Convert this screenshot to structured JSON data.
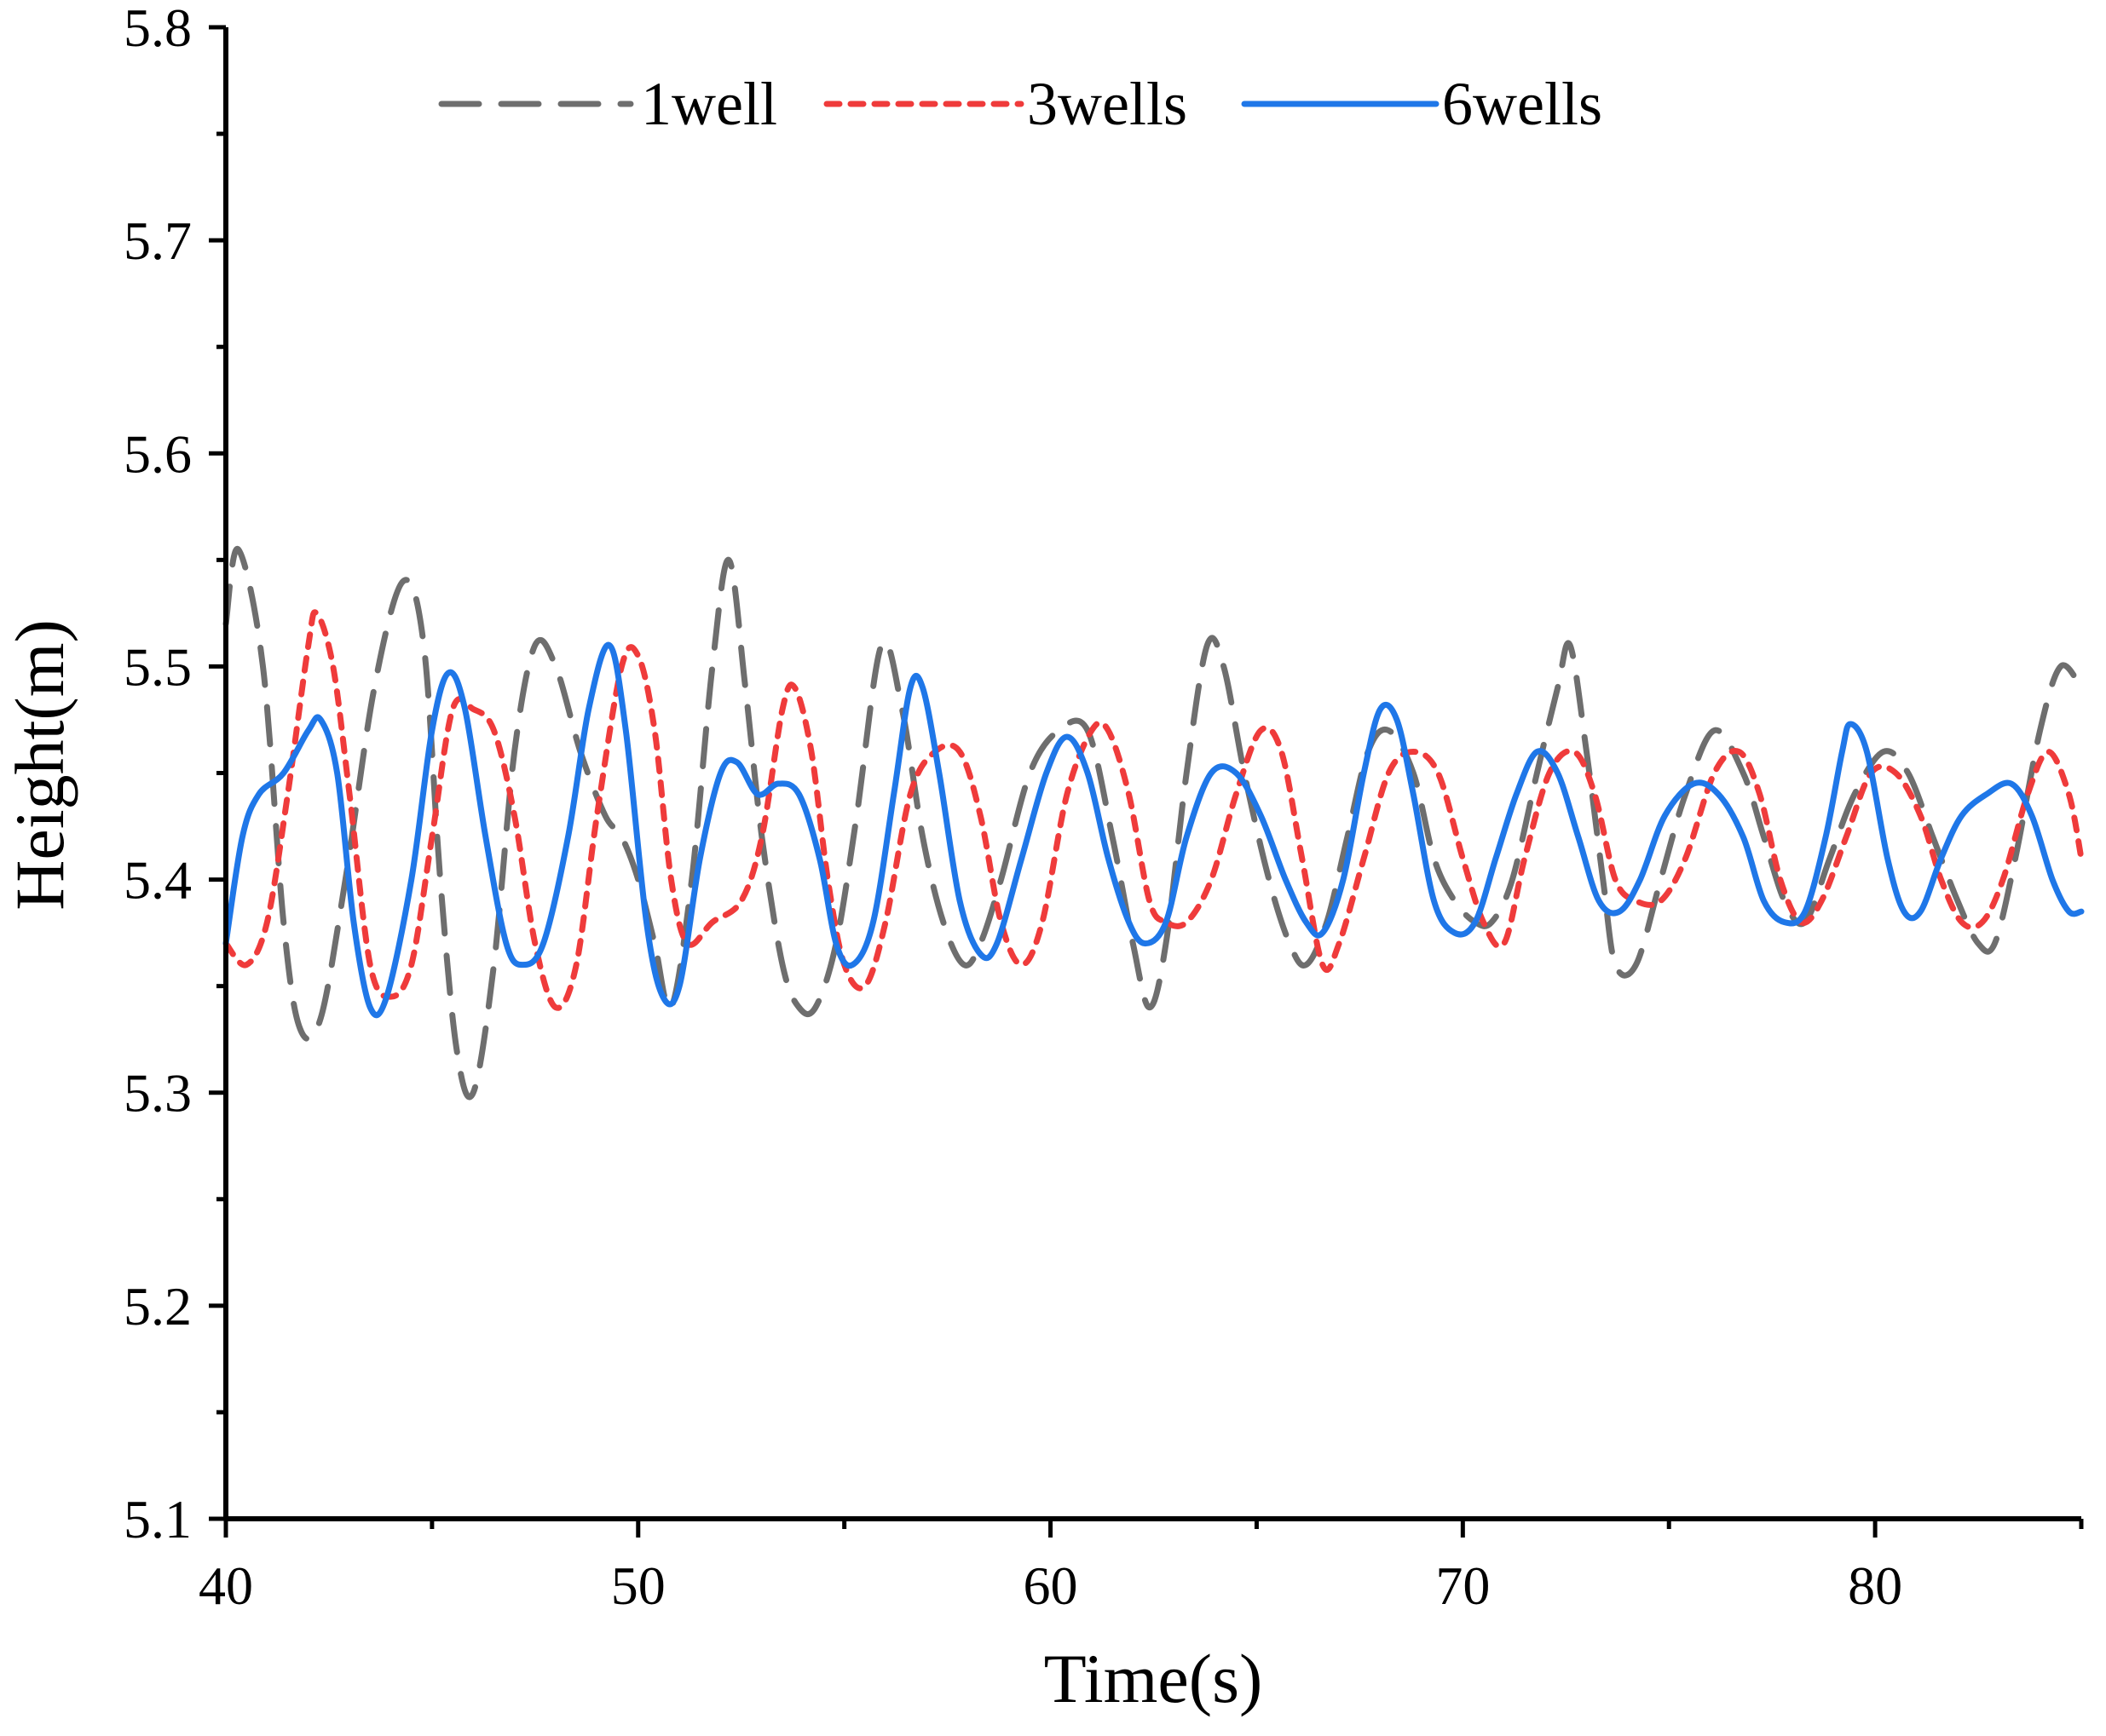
{
  "chart_data": {
    "type": "line",
    "title": "",
    "xlabel": "Time(s)",
    "ylabel": "Height(m)",
    "xlim": [
      40,
      85
    ],
    "ylim": [
      5.1,
      5.8
    ],
    "xticks": [
      40,
      50,
      60,
      70,
      80
    ],
    "xtick_labels": [
      "40",
      "50",
      "60",
      "70",
      "80"
    ],
    "yticks": [
      5.1,
      5.2,
      5.3,
      5.4,
      5.5,
      5.6,
      5.7,
      5.8
    ],
    "ytick_labels": [
      "5.1",
      "5.2",
      "5.3",
      "5.4",
      "5.5",
      "5.6",
      "5.7",
      "5.8"
    ],
    "grid": false,
    "legend_position": "top",
    "series": [
      {
        "name": "1well",
        "color": "#6e6e6e",
        "style": "dashed",
        "points": [
          [
            40.0,
            5.52
          ],
          [
            40.3,
            5.555
          ],
          [
            40.9,
            5.5
          ],
          [
            41.4,
            5.38
          ],
          [
            41.8,
            5.33
          ],
          [
            42.3,
            5.335
          ],
          [
            42.9,
            5.4
          ],
          [
            43.6,
            5.49
          ],
          [
            44.3,
            5.54
          ],
          [
            44.8,
            5.51
          ],
          [
            45.2,
            5.4
          ],
          [
            45.6,
            5.32
          ],
          [
            46.0,
            5.3
          ],
          [
            46.5,
            5.36
          ],
          [
            47.0,
            5.46
          ],
          [
            47.5,
            5.51
          ],
          [
            48.0,
            5.5
          ],
          [
            48.6,
            5.46
          ],
          [
            49.2,
            5.43
          ],
          [
            49.6,
            5.42
          ],
          [
            50.0,
            5.4
          ],
          [
            50.4,
            5.37
          ],
          [
            50.8,
            5.34
          ],
          [
            51.3,
            5.4
          ],
          [
            51.8,
            5.5
          ],
          [
            52.2,
            5.55
          ],
          [
            52.6,
            5.49
          ],
          [
            53.0,
            5.42
          ],
          [
            53.5,
            5.36
          ],
          [
            53.9,
            5.34
          ],
          [
            54.3,
            5.34
          ],
          [
            54.8,
            5.37
          ],
          [
            55.3,
            5.43
          ],
          [
            55.9,
            5.51
          ],
          [
            56.4,
            5.48
          ],
          [
            56.9,
            5.42
          ],
          [
            57.4,
            5.38
          ],
          [
            57.9,
            5.36
          ],
          [
            58.3,
            5.37
          ],
          [
            58.8,
            5.4
          ],
          [
            59.5,
            5.45
          ],
          [
            60.2,
            5.47
          ],
          [
            60.9,
            5.47
          ],
          [
            61.5,
            5.42
          ],
          [
            62.0,
            5.37
          ],
          [
            62.4,
            5.34
          ],
          [
            62.8,
            5.37
          ],
          [
            63.3,
            5.45
          ],
          [
            63.8,
            5.51
          ],
          [
            64.2,
            5.5
          ],
          [
            64.7,
            5.45
          ],
          [
            65.3,
            5.4
          ],
          [
            65.8,
            5.37
          ],
          [
            66.2,
            5.36
          ],
          [
            66.7,
            5.38
          ],
          [
            67.2,
            5.42
          ],
          [
            67.7,
            5.46
          ],
          [
            68.2,
            5.47
          ],
          [
            68.8,
            5.45
          ],
          [
            69.3,
            5.41
          ],
          [
            69.8,
            5.39
          ],
          [
            70.3,
            5.38
          ],
          [
            70.7,
            5.38
          ],
          [
            71.2,
            5.4
          ],
          [
            71.8,
            5.45
          ],
          [
            72.3,
            5.49
          ],
          [
            72.6,
            5.51
          ],
          [
            73.0,
            5.46
          ],
          [
            73.4,
            5.4
          ],
          [
            73.7,
            5.36
          ],
          [
            74.2,
            5.36
          ],
          [
            74.8,
            5.4
          ],
          [
            75.4,
            5.44
          ],
          [
            76.1,
            5.47
          ],
          [
            76.8,
            5.45
          ],
          [
            77.3,
            5.42
          ],
          [
            77.8,
            5.39
          ],
          [
            78.3,
            5.38
          ],
          [
            78.9,
            5.41
          ],
          [
            79.5,
            5.44
          ],
          [
            80.2,
            5.46
          ],
          [
            80.8,
            5.45
          ],
          [
            81.4,
            5.42
          ],
          [
            82.0,
            5.39
          ],
          [
            82.5,
            5.37
          ],
          [
            82.9,
            5.37
          ],
          [
            83.4,
            5.41
          ],
          [
            84.0,
            5.47
          ],
          [
            84.5,
            5.5
          ],
          [
            85.0,
            5.49
          ]
        ]
      },
      {
        "name": "3wells",
        "color": "#ef3b3b",
        "style": "dotted",
        "points": [
          [
            40.0,
            5.37
          ],
          [
            40.5,
            5.36
          ],
          [
            41.0,
            5.38
          ],
          [
            41.5,
            5.44
          ],
          [
            42.0,
            5.51
          ],
          [
            42.2,
            5.525
          ],
          [
            42.6,
            5.5
          ],
          [
            43.0,
            5.44
          ],
          [
            43.5,
            5.36
          ],
          [
            44.0,
            5.345
          ],
          [
            44.5,
            5.36
          ],
          [
            45.0,
            5.42
          ],
          [
            45.5,
            5.48
          ],
          [
            46.0,
            5.48
          ],
          [
            46.5,
            5.47
          ],
          [
            47.0,
            5.43
          ],
          [
            47.5,
            5.37
          ],
          [
            48.0,
            5.34
          ],
          [
            48.5,
            5.36
          ],
          [
            49.0,
            5.43
          ],
          [
            49.6,
            5.5
          ],
          [
            50.0,
            5.505
          ],
          [
            50.4,
            5.47
          ],
          [
            50.8,
            5.4
          ],
          [
            51.2,
            5.37
          ],
          [
            51.8,
            5.38
          ],
          [
            52.5,
            5.39
          ],
          [
            53.0,
            5.42
          ],
          [
            53.5,
            5.48
          ],
          [
            53.8,
            5.49
          ],
          [
            54.2,
            5.46
          ],
          [
            54.6,
            5.4
          ],
          [
            55.0,
            5.36
          ],
          [
            55.5,
            5.35
          ],
          [
            56.0,
            5.38
          ],
          [
            56.6,
            5.44
          ],
          [
            57.2,
            5.46
          ],
          [
            57.8,
            5.46
          ],
          [
            58.3,
            5.43
          ],
          [
            58.8,
            5.38
          ],
          [
            59.3,
            5.36
          ],
          [
            59.8,
            5.38
          ],
          [
            60.4,
            5.44
          ],
          [
            61.0,
            5.47
          ],
          [
            61.4,
            5.47
          ],
          [
            61.9,
            5.44
          ],
          [
            62.4,
            5.39
          ],
          [
            62.8,
            5.38
          ],
          [
            63.3,
            5.38
          ],
          [
            63.9,
            5.4
          ],
          [
            64.5,
            5.44
          ],
          [
            65.1,
            5.47
          ],
          [
            65.6,
            5.46
          ],
          [
            66.1,
            5.41
          ],
          [
            66.6,
            5.36
          ],
          [
            67.0,
            5.37
          ],
          [
            67.6,
            5.41
          ],
          [
            68.2,
            5.45
          ],
          [
            68.8,
            5.46
          ],
          [
            69.4,
            5.45
          ],
          [
            70.0,
            5.41
          ],
          [
            70.5,
            5.38
          ],
          [
            71.0,
            5.37
          ],
          [
            71.5,
            5.41
          ],
          [
            72.1,
            5.45
          ],
          [
            72.7,
            5.46
          ],
          [
            73.2,
            5.44
          ],
          [
            73.7,
            5.4
          ],
          [
            74.2,
            5.39
          ],
          [
            74.8,
            5.39
          ],
          [
            75.4,
            5.41
          ],
          [
            76.1,
            5.45
          ],
          [
            76.7,
            5.46
          ],
          [
            77.2,
            5.44
          ],
          [
            77.7,
            5.4
          ],
          [
            78.2,
            5.38
          ],
          [
            78.7,
            5.39
          ],
          [
            79.3,
            5.42
          ],
          [
            79.9,
            5.45
          ],
          [
            80.5,
            5.45
          ],
          [
            81.1,
            5.43
          ],
          [
            81.6,
            5.4
          ],
          [
            82.1,
            5.38
          ],
          [
            82.6,
            5.38
          ],
          [
            83.1,
            5.4
          ],
          [
            83.7,
            5.44
          ],
          [
            84.2,
            5.46
          ],
          [
            84.7,
            5.44
          ],
          [
            85.0,
            5.41
          ]
        ]
      },
      {
        "name": "6wells",
        "color": "#1f77e8",
        "style": "solid",
        "points": [
          [
            40.0,
            5.37
          ],
          [
            40.4,
            5.42
          ],
          [
            40.8,
            5.44
          ],
          [
            41.4,
            5.45
          ],
          [
            42.0,
            5.47
          ],
          [
            42.3,
            5.475
          ],
          [
            42.7,
            5.45
          ],
          [
            43.1,
            5.38
          ],
          [
            43.5,
            5.34
          ],
          [
            43.9,
            5.345
          ],
          [
            44.5,
            5.4
          ],
          [
            45.0,
            5.47
          ],
          [
            45.4,
            5.497
          ],
          [
            45.8,
            5.48
          ],
          [
            46.3,
            5.42
          ],
          [
            46.8,
            5.37
          ],
          [
            47.2,
            5.36
          ],
          [
            47.7,
            5.37
          ],
          [
            48.3,
            5.42
          ],
          [
            48.8,
            5.48
          ],
          [
            49.3,
            5.51
          ],
          [
            49.7,
            5.47
          ],
          [
            50.2,
            5.38
          ],
          [
            50.6,
            5.345
          ],
          [
            51.0,
            5.35
          ],
          [
            51.5,
            5.41
          ],
          [
            52.0,
            5.45
          ],
          [
            52.4,
            5.455
          ],
          [
            52.9,
            5.44
          ],
          [
            53.4,
            5.445
          ],
          [
            53.9,
            5.44
          ],
          [
            54.4,
            5.41
          ],
          [
            54.8,
            5.37
          ],
          [
            55.2,
            5.36
          ],
          [
            55.7,
            5.38
          ],
          [
            56.2,
            5.44
          ],
          [
            56.6,
            5.49
          ],
          [
            56.9,
            5.49
          ],
          [
            57.3,
            5.45
          ],
          [
            57.8,
            5.39
          ],
          [
            58.3,
            5.365
          ],
          [
            58.7,
            5.37
          ],
          [
            59.3,
            5.41
          ],
          [
            59.9,
            5.45
          ],
          [
            60.4,
            5.467
          ],
          [
            60.9,
            5.45
          ],
          [
            61.4,
            5.41
          ],
          [
            61.9,
            5.38
          ],
          [
            62.3,
            5.37
          ],
          [
            62.8,
            5.38
          ],
          [
            63.3,
            5.42
          ],
          [
            63.9,
            5.45
          ],
          [
            64.5,
            5.45
          ],
          [
            65.1,
            5.43
          ],
          [
            65.7,
            5.4
          ],
          [
            66.2,
            5.38
          ],
          [
            66.6,
            5.375
          ],
          [
            67.1,
            5.4
          ],
          [
            67.6,
            5.45
          ],
          [
            68.0,
            5.48
          ],
          [
            68.4,
            5.475
          ],
          [
            68.8,
            5.44
          ],
          [
            69.3,
            5.39
          ],
          [
            69.8,
            5.375
          ],
          [
            70.3,
            5.38
          ],
          [
            70.8,
            5.41
          ],
          [
            71.3,
            5.44
          ],
          [
            71.8,
            5.46
          ],
          [
            72.3,
            5.45
          ],
          [
            72.8,
            5.42
          ],
          [
            73.3,
            5.39
          ],
          [
            73.8,
            5.385
          ],
          [
            74.3,
            5.4
          ],
          [
            74.9,
            5.43
          ],
          [
            75.6,
            5.445
          ],
          [
            76.2,
            5.44
          ],
          [
            76.8,
            5.42
          ],
          [
            77.3,
            5.39
          ],
          [
            77.8,
            5.38
          ],
          [
            78.3,
            5.385
          ],
          [
            78.8,
            5.42
          ],
          [
            79.2,
            5.46
          ],
          [
            79.4,
            5.473
          ],
          [
            79.8,
            5.46
          ],
          [
            80.3,
            5.41
          ],
          [
            80.7,
            5.385
          ],
          [
            81.1,
            5.385
          ],
          [
            81.6,
            5.41
          ],
          [
            82.1,
            5.43
          ],
          [
            82.7,
            5.44
          ],
          [
            83.3,
            5.445
          ],
          [
            83.8,
            5.43
          ],
          [
            84.3,
            5.4
          ],
          [
            84.7,
            5.385
          ],
          [
            85.0,
            5.385
          ]
        ]
      }
    ]
  }
}
